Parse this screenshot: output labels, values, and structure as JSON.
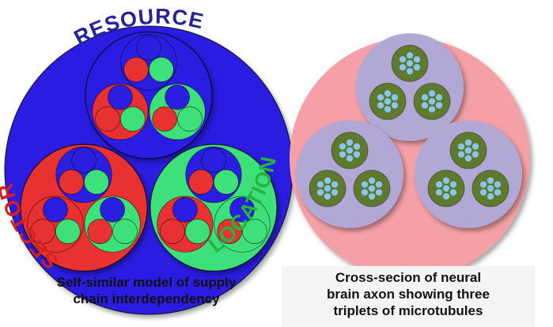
{
  "left_diagram": {
    "labels": {
      "top": "RESOURCE",
      "left": "SECTOR",
      "right": "LOCATION"
    },
    "caption_lines": [
      "Self-similar model of supply",
      "chain interdependency"
    ],
    "colors": {
      "resource": "#2a1fe0",
      "sector": "#e83232",
      "location": "#3ee07a",
      "resource_text": "#26229a",
      "sector_text": "#d42020",
      "location_text": "#25b53f"
    }
  },
  "right_diagram": {
    "caption_lines": [
      "Cross-secion of neural",
      "brain axon  showing three",
      "triplets of microtubules"
    ],
    "colors": {
      "axon": "#f4a0a6",
      "bundle": "#b2a8d6",
      "tubule": "#5f7a2c",
      "subunit": "#89c6e6"
    }
  }
}
